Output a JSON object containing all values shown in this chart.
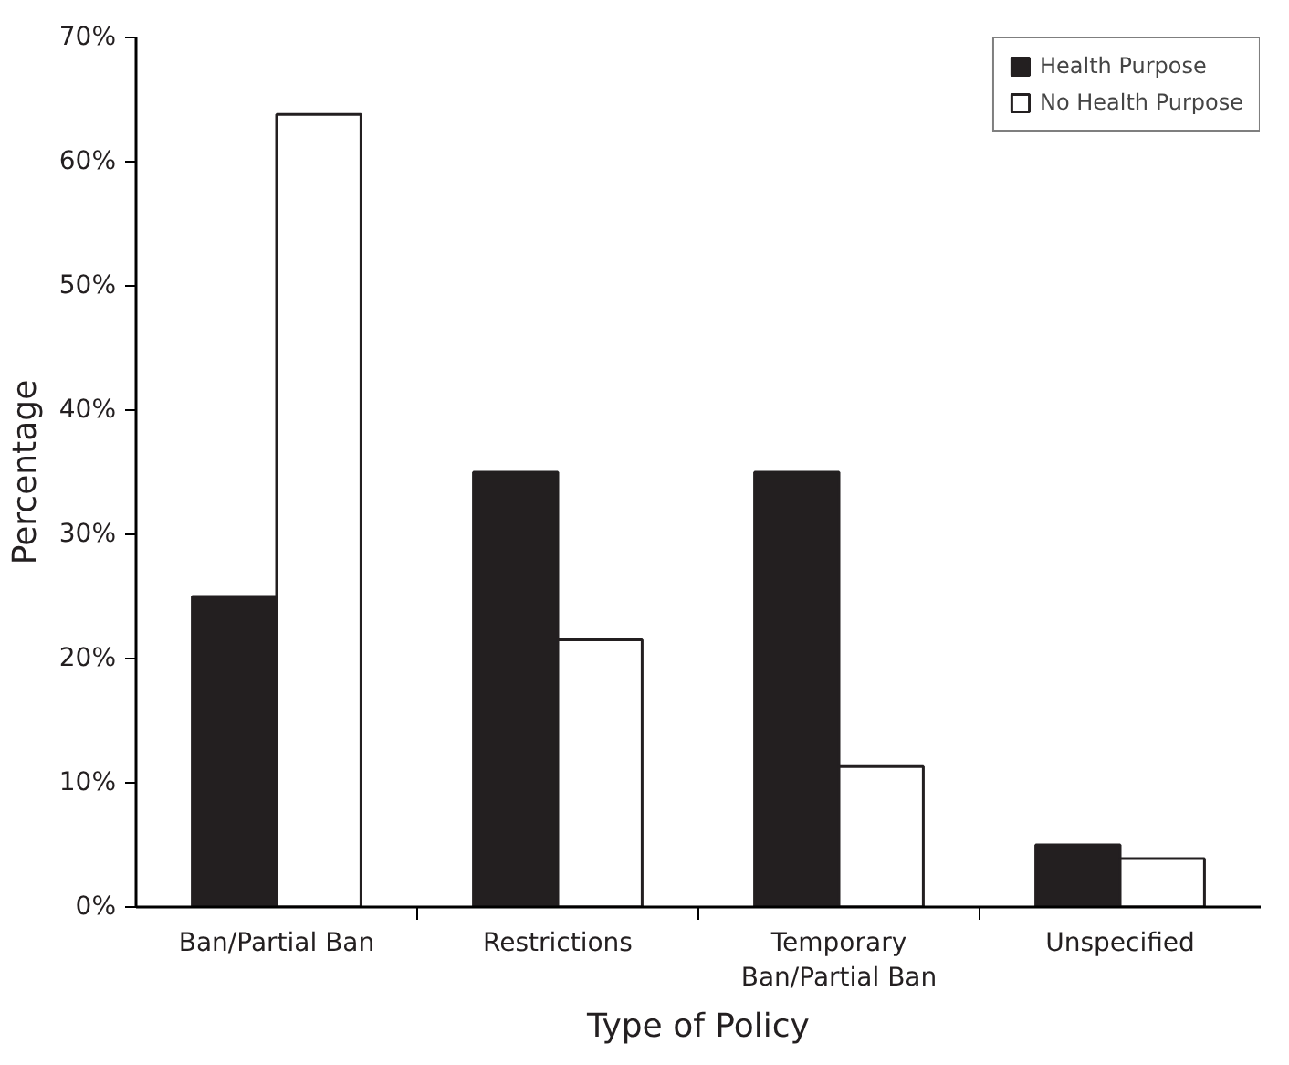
{
  "chart_data": {
    "type": "bar",
    "xlabel": "Type of Policy",
    "ylabel": "Percentage",
    "categories": [
      "Ban/Partial Ban",
      "Restrictions",
      "Temporary Ban/Partial Ban",
      "Unspecified"
    ],
    "series": [
      {
        "name": "Health Purpose",
        "color": "#231f20",
        "values": [
          25,
          35,
          35,
          5
        ]
      },
      {
        "name": "No Health Purpose",
        "color": "#ffffff",
        "values": [
          63.8,
          21.5,
          11.3,
          3.9
        ]
      }
    ],
    "ylim": [
      0,
      70
    ],
    "yticks": [
      {
        "value": 0,
        "label": "0%"
      },
      {
        "value": 10,
        "label": "10%"
      },
      {
        "value": 20,
        "label": "20%"
      },
      {
        "value": 30,
        "label": "30%"
      },
      {
        "value": 40,
        "label": "40%"
      },
      {
        "value": 50,
        "label": "50%"
      },
      {
        "value": 60,
        "label": "60%"
      },
      {
        "value": 70,
        "label": "70%"
      }
    ],
    "grid": false,
    "legend": "top right"
  }
}
